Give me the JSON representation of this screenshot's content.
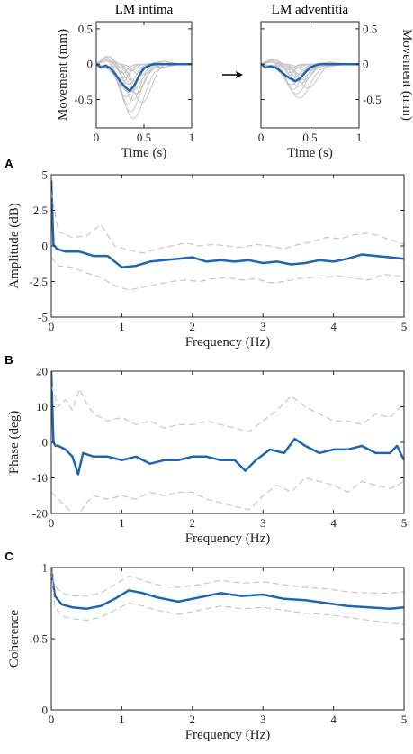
{
  "colors": {
    "mean": "#1f66b0",
    "sample": "#c8c8c8",
    "ci": "#c8c8c8",
    "axis": "#262626"
  },
  "chart_data": [
    {
      "type": "line",
      "title": "LM intima",
      "xlabel": "Time (s)",
      "ylabel": "Movement (mm)",
      "xlim": [
        0,
        1
      ],
      "ylim": [
        -0.9,
        0.6
      ],
      "xticks": [
        0,
        0.5,
        1
      ],
      "xticklabels": [
        "0",
        "0.5",
        "1"
      ],
      "yticks": [
        0.5,
        0,
        -0.5
      ],
      "yticklabels": [
        "0.5",
        "0",
        "-0.5"
      ],
      "grid": false,
      "series": [
        {
          "x": [
            0,
            0.05,
            0.1,
            0.15,
            0.2,
            0.25,
            0.3,
            0.35,
            0.4,
            0.45,
            0.5,
            0.55,
            0.6,
            0.7,
            0.8,
            0.9,
            1.0
          ],
          "y": [
            0,
            -0.05,
            -0.02,
            -0.06,
            -0.14,
            -0.24,
            -0.32,
            -0.38,
            -0.3,
            -0.16,
            -0.06,
            -0.02,
            0,
            0,
            0,
            0,
            0
          ]
        }
      ]
    },
    {
      "type": "line",
      "title": "LM adventitia",
      "xlabel": "Time (s)",
      "ylabel": "Movement (mm)",
      "xlim": [
        0,
        1
      ],
      "ylim": [
        -0.9,
        0.6
      ],
      "xticks": [
        0,
        0.5,
        1
      ],
      "xticklabels": [
        "0",
        "0.5",
        "1"
      ],
      "yticks": [
        0.5,
        0,
        -0.5
      ],
      "yticklabels": [
        "0.5",
        "0",
        "-0.5"
      ],
      "grid": false,
      "series": [
        {
          "x": [
            0,
            0.05,
            0.1,
            0.15,
            0.2,
            0.25,
            0.3,
            0.35,
            0.4,
            0.45,
            0.5,
            0.55,
            0.6,
            0.7,
            0.8,
            0.9,
            1.0
          ],
          "y": [
            0,
            -0.05,
            -0.03,
            -0.05,
            -0.1,
            -0.16,
            -0.2,
            -0.24,
            -0.2,
            -0.12,
            -0.05,
            -0.02,
            0,
            0,
            0,
            0,
            0
          ]
        }
      ]
    },
    {
      "type": "line",
      "panel_label": "A",
      "xlabel": "Frequency (Hz)",
      "ylabel": "Amplitude (dB)",
      "xlim": [
        0,
        5
      ],
      "ylim": [
        -5,
        5
      ],
      "xticks": [
        0,
        1,
        2,
        3,
        4,
        5
      ],
      "yticks": [
        5,
        2.5,
        0,
        -2.5,
        -5
      ],
      "yticklabels": [
        "5",
        "2.5",
        "0",
        "-2.5",
        "-5"
      ],
      "grid": false,
      "series": [
        {
          "style": "mean",
          "x": [
            0,
            0.03,
            0.08,
            0.2,
            0.4,
            0.6,
            0.8,
            1.0,
            1.2,
            1.4,
            1.6,
            1.8,
            2.0,
            2.2,
            2.4,
            2.6,
            2.8,
            3.0,
            3.2,
            3.4,
            3.6,
            3.8,
            4.0,
            4.2,
            4.4,
            4.6,
            4.8,
            5.0
          ],
          "y": [
            4.6,
            0.1,
            -0.2,
            -0.4,
            -0.4,
            -0.7,
            -0.7,
            -1.5,
            -1.4,
            -1.1,
            -1.0,
            -0.9,
            -0.8,
            -1.1,
            -1.0,
            -1.1,
            -1.0,
            -1.2,
            -1.1,
            -1.3,
            -1.2,
            -1.0,
            -1.1,
            -0.9,
            -0.6,
            -0.7,
            -0.8,
            -0.9
          ]
        },
        {
          "style": "ci",
          "x": [
            0,
            0.1,
            0.3,
            0.5,
            0.7,
            0.9,
            1.1,
            1.3,
            1.5,
            1.7,
            1.9,
            2.1,
            2.3,
            2.5,
            2.7,
            2.9,
            3.1,
            3.3,
            3.5,
            3.7,
            3.9,
            4.1,
            4.3,
            4.5,
            4.7,
            4.9,
            5.0
          ],
          "y": [
            3.8,
            1.0,
            0.6,
            0.7,
            1.5,
            0.0,
            -0.3,
            -0.5,
            -0.2,
            0.0,
            0.2,
            0.0,
            0.1,
            0.0,
            -0.1,
            0.1,
            0.0,
            -0.2,
            0.1,
            0.3,
            0.6,
            0.5,
            0.8,
            0.9,
            0.6,
            0.3,
            0.1
          ]
        },
        {
          "style": "ci",
          "x": [
            0,
            0.1,
            0.3,
            0.5,
            0.7,
            0.9,
            1.1,
            1.3,
            1.5,
            1.7,
            1.9,
            2.1,
            2.3,
            2.5,
            2.7,
            2.9,
            3.1,
            3.3,
            3.5,
            3.7,
            3.9,
            4.1,
            4.3,
            4.5,
            4.7,
            4.9,
            5.0
          ],
          "y": [
            -0.8,
            -1.4,
            -1.5,
            -1.9,
            -2.2,
            -2.8,
            -3.1,
            -2.9,
            -2.7,
            -2.5,
            -2.4,
            -2.5,
            -2.3,
            -2.2,
            -2.4,
            -2.3,
            -2.6,
            -2.5,
            -2.3,
            -2.2,
            -2.2,
            -2.1,
            -2.3,
            -2.4,
            -2.0,
            -2.1,
            -2.1
          ]
        }
      ]
    },
    {
      "type": "line",
      "panel_label": "B",
      "xlabel": "Frequency (Hz)",
      "ylabel": "Phase (deg)",
      "xlim": [
        0,
        5
      ],
      "ylim": [
        -20,
        20
      ],
      "xticks": [
        0,
        1,
        2,
        3,
        4,
        5
      ],
      "yticks": [
        20,
        10,
        0,
        -10,
        -20
      ],
      "grid": false,
      "series": [
        {
          "style": "mean",
          "x": [
            0,
            0.03,
            0.06,
            0.1,
            0.2,
            0.3,
            0.38,
            0.45,
            0.6,
            0.8,
            1.0,
            1.2,
            1.4,
            1.6,
            1.8,
            2.0,
            2.2,
            2.4,
            2.6,
            2.75,
            2.9,
            3.1,
            3.3,
            3.45,
            3.6,
            3.8,
            4.0,
            4.2,
            4.4,
            4.6,
            4.8,
            4.9,
            5.0
          ],
          "y": [
            20,
            0,
            -1,
            -1,
            -2,
            -4,
            -9,
            -3,
            -4,
            -4,
            -5,
            -4,
            -6,
            -5,
            -5,
            -4,
            -4,
            -5,
            -5,
            -8,
            -5,
            -2,
            -3,
            1,
            -1,
            -3,
            -2,
            -2,
            -1,
            -3,
            -3,
            -1,
            -5
          ]
        },
        {
          "style": "ci",
          "x": [
            0,
            0.1,
            0.2,
            0.3,
            0.4,
            0.5,
            0.6,
            0.8,
            1.0,
            1.2,
            1.4,
            1.6,
            1.8,
            2.0,
            2.2,
            2.4,
            2.6,
            2.8,
            3.0,
            3.2,
            3.4,
            3.6,
            3.8,
            4.0,
            4.2,
            4.4,
            4.6,
            4.8,
            5.0
          ],
          "y": [
            16,
            10,
            12,
            9,
            15,
            11,
            8,
            6,
            7,
            5,
            6,
            4,
            5,
            5,
            6,
            5,
            4,
            3,
            6,
            9,
            13,
            10,
            8,
            6,
            6,
            5,
            8,
            7,
            11
          ]
        },
        {
          "style": "ci",
          "x": [
            0,
            0.1,
            0.2,
            0.3,
            0.4,
            0.5,
            0.6,
            0.8,
            1.0,
            1.2,
            1.4,
            1.6,
            1.8,
            2.0,
            2.2,
            2.4,
            2.6,
            2.8,
            3.0,
            3.2,
            3.4,
            3.6,
            3.8,
            4.0,
            4.2,
            4.4,
            4.6,
            4.8,
            5.0
          ],
          "y": [
            -14,
            -16,
            -18,
            -20,
            -20,
            -17,
            -15,
            -16,
            -15,
            -16,
            -14,
            -15,
            -14,
            -14,
            -16,
            -17,
            -18,
            -19,
            -15,
            -12,
            -14,
            -10,
            -11,
            -12,
            -14,
            -11,
            -12,
            -13,
            -11
          ]
        }
      ]
    },
    {
      "type": "line",
      "panel_label": "C",
      "xlabel": "Frequency (Hz)",
      "ylabel": "Coherence",
      "xlim": [
        0,
        5
      ],
      "ylim": [
        0,
        1
      ],
      "xticks": [
        0,
        1,
        2,
        3,
        4,
        5
      ],
      "yticks": [
        1,
        0.5,
        0
      ],
      "grid": false,
      "series": [
        {
          "style": "mean",
          "x": [
            0,
            0.05,
            0.15,
            0.3,
            0.5,
            0.7,
            0.9,
            1.1,
            1.3,
            1.5,
            1.8,
            2.1,
            2.4,
            2.7,
            3.0,
            3.3,
            3.6,
            3.9,
            4.2,
            4.5,
            4.8,
            5.0
          ],
          "y": [
            1.0,
            0.8,
            0.74,
            0.72,
            0.71,
            0.73,
            0.78,
            0.84,
            0.82,
            0.79,
            0.76,
            0.79,
            0.82,
            0.8,
            0.81,
            0.78,
            0.77,
            0.75,
            0.73,
            0.72,
            0.71,
            0.72
          ]
        },
        {
          "style": "ci",
          "x": [
            0,
            0.05,
            0.15,
            0.3,
            0.5,
            0.7,
            0.9,
            1.1,
            1.3,
            1.5,
            1.8,
            2.1,
            2.4,
            2.7,
            3.0,
            3.3,
            3.6,
            3.9,
            4.2,
            4.5,
            4.8,
            5.0
          ],
          "y": [
            1.0,
            0.87,
            0.82,
            0.8,
            0.8,
            0.82,
            0.88,
            0.94,
            0.91,
            0.88,
            0.86,
            0.88,
            0.91,
            0.89,
            0.9,
            0.88,
            0.86,
            0.85,
            0.83,
            0.82,
            0.82,
            0.83
          ]
        },
        {
          "style": "ci",
          "x": [
            0,
            0.05,
            0.15,
            0.3,
            0.5,
            0.7,
            0.9,
            1.1,
            1.3,
            1.5,
            1.8,
            2.1,
            2.4,
            2.7,
            3.0,
            3.3,
            3.6,
            3.9,
            4.2,
            4.5,
            4.8,
            5.0
          ],
          "y": [
            0.98,
            0.72,
            0.66,
            0.64,
            0.63,
            0.65,
            0.7,
            0.75,
            0.73,
            0.7,
            0.67,
            0.7,
            0.73,
            0.71,
            0.72,
            0.7,
            0.68,
            0.67,
            0.65,
            0.63,
            0.61,
            0.6
          ]
        }
      ]
    }
  ]
}
